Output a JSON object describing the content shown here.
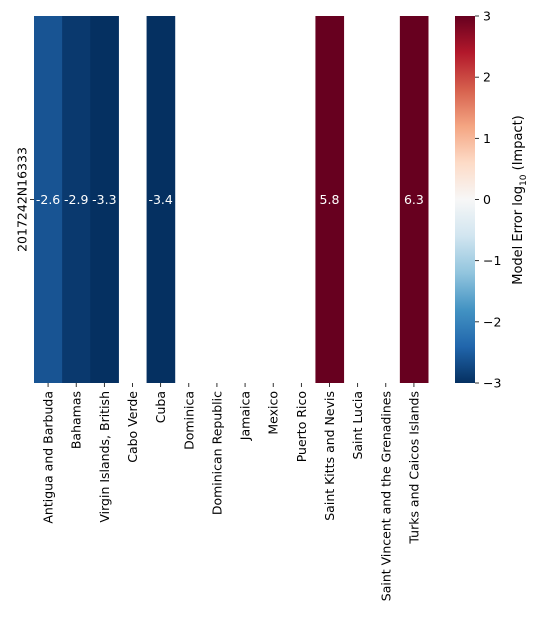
{
  "chart_data": {
    "type": "heatmap",
    "rows": [
      "2017242N16333"
    ],
    "columns": [
      "Antigua and Barbuda",
      "Bahamas",
      "Virgin Islands, British",
      "Cabo Verde",
      "Cuba",
      "Dominica",
      "Dominican Republic",
      "Jamaica",
      "Mexico",
      "Puerto Rico",
      "Saint Kitts and Nevis",
      "Saint Lucia",
      "Saint Vincent and the Grenadines",
      "Turks and Caicos Islands"
    ],
    "values": [
      [
        -2.6,
        -2.9,
        -3.3,
        null,
        -3.4,
        null,
        null,
        null,
        null,
        null,
        5.8,
        null,
        null,
        6.3
      ]
    ],
    "cell_labels": [
      [
        "-2.6",
        "-2.9",
        "-3.3",
        "",
        "-3.4",
        "",
        "",
        "",
        "",
        "",
        "5.8",
        "",
        "",
        "6.3"
      ]
    ],
    "colormap": "RdBu_r",
    "vmin": -3,
    "vmax": 3,
    "colorbar": {
      "label_prefix": "Model Error log",
      "label_subscript": "10",
      "label_suffix": " (Impact)",
      "ticks": [
        3,
        2,
        1,
        0,
        -1,
        -2,
        -3
      ],
      "tick_labels": [
        "3",
        "2",
        "1",
        "0",
        "−1",
        "−2",
        "−3"
      ]
    }
  }
}
